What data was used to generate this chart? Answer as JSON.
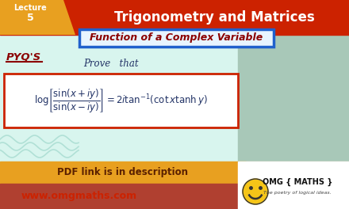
{
  "title_text": "Trigonometry and Matrices",
  "subtitle_text": "Function of a Complex Variable",
  "lecture_line1": "Lecture",
  "lecture_line2": "5",
  "pyq_label": "PYQ'S",
  "prove_text": "Prove   that",
  "bottom_text": "PDF link is in description",
  "website_text": "www.omgmaths.com",
  "brand_text": "OMG { MATHS }",
  "brand_sub": "The poetry of logical ideas.",
  "bg_top": "#cc2200",
  "bg_mid": "#d8f5ee",
  "bg_bottom_gold": "#e8a020",
  "bg_bottom_rust": "#b04030",
  "lecture_bg": "#e8a020",
  "subtitle_fill": "#e8f4ff",
  "subtitle_border": "#2060cc",
  "formula_border": "#cc2200",
  "formula_bg": "#ffffff",
  "pyq_color": "#8B0000",
  "prove_color": "#223366",
  "formula_color": "#223366",
  "title_color": "#ffffff",
  "pdf_color": "#5a2000",
  "web_color": "#cc2200",
  "brand_color": "#111111",
  "person_bg": "#a8c8b8",
  "wave_color": "#a0d8cc",
  "smiley_color": "#f5c518"
}
